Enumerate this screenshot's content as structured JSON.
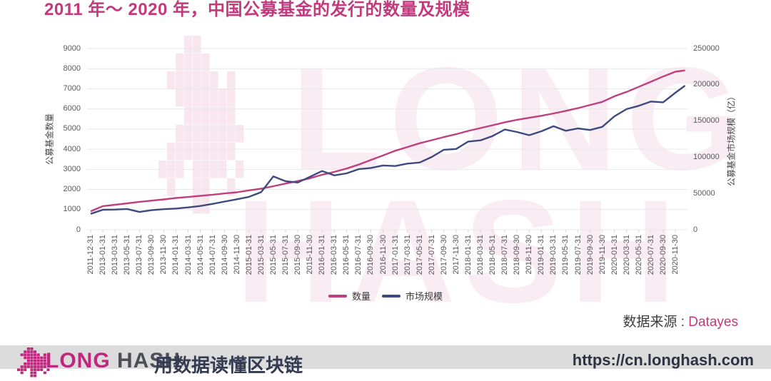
{
  "title": "2011 年～ 2020 年，中国公募基金的发行的数量及规模",
  "source": {
    "label": "数据来源 :",
    "value": "Datayes"
  },
  "watermark": {
    "line1": "LONG",
    "line2": "HASH"
  },
  "footer": {
    "brand_long": "LONG",
    "brand_hash": "HASH",
    "tagline": "用数据读懂区块链",
    "url": "https://cn.longhash.com"
  },
  "colors": {
    "title_pink": "#c23a7c",
    "series_count": "#c0407e",
    "series_scale": "#3d4a7d",
    "gridline": "#e7e7e7",
    "axis_text": "#595959",
    "footer_bg": "#dcdcdc",
    "brand_magenta": "#c0267e"
  },
  "chart_data": {
    "type": "line",
    "title": "2011 年～ 2020 年，中国公募基金的发行的数量及规模",
    "grid": true,
    "legend_position": "bottom",
    "y_left": {
      "label": "公募基金数量",
      "min": 0,
      "max": 9000,
      "tick_step": 1000,
      "ticks": [
        0,
        1000,
        2000,
        3000,
        4000,
        5000,
        6000,
        7000,
        8000,
        9000
      ]
    },
    "y_right": {
      "label": "公募基金市场规模（亿）",
      "min": 0,
      "max": 250000,
      "tick_step": 50000,
      "ticks": [
        0,
        50000,
        100000,
        150000,
        200000,
        250000
      ]
    },
    "x_labels": [
      "2011-12-31",
      "2013-01-31",
      "2013-03-31",
      "2013-05-31",
      "2013-07-31",
      "2013-09-30",
      "2013-11-30",
      "2014-01-31",
      "2014-03-31",
      "2014-05-31",
      "2014-07-31",
      "2014-09-30",
      "2014-11-30",
      "2015-01-31",
      "2015-03-31",
      "2015-05-31",
      "2015-07-31",
      "2015-09-30",
      "2015-11-30",
      "2016-01-31",
      "2016-03-31",
      "2016-05-31",
      "2016-07-31",
      "2016-09-30",
      "2016-11-30",
      "2017-01-31",
      "2017-03-31",
      "2017-05-31",
      "2017-07-31",
      "2017-09-30",
      "2017-11-30",
      "2018-01-31",
      "2018-03-31",
      "2018-05-31",
      "2018-07-31",
      "2018-09-30",
      "2018-11-30",
      "2019-01-31",
      "2019-03-31",
      "2019-05-31",
      "2019-07-31",
      "2019-09-30",
      "2019-11-30",
      "2020-01-31",
      "2020-03-31",
      "2020-05-31",
      "2020-07-31",
      "2020-09-30",
      "2020-11-30"
    ],
    "x_extra_point": "2020-12-31",
    "series": [
      {
        "name": "数量",
        "axis": "left",
        "color": "#c0407e",
        "values": [
          914,
          1173,
          1241,
          1311,
          1384,
          1445,
          1505,
          1576,
          1628,
          1682,
          1740,
          1804,
          1862,
          1955,
          2042,
          2161,
          2294,
          2420,
          2555,
          2732,
          2873,
          3038,
          3236,
          3463,
          3689,
          3922,
          4107,
          4293,
          4448,
          4604,
          4746,
          4906,
          5048,
          5190,
          5336,
          5459,
          5560,
          5658,
          5777,
          5903,
          6038,
          6199,
          6350,
          6628,
          6847,
          7096,
          7351,
          7610,
          7850,
          7913
        ]
      },
      {
        "name": "市场规模",
        "axis": "right",
        "color": "#3d4a7d",
        "values": [
          21900,
          27600,
          27900,
          28600,
          24500,
          27000,
          28300,
          29200,
          30800,
          32800,
          35600,
          38900,
          42000,
          45400,
          52000,
          73600,
          66900,
          65200,
          73000,
          81000,
          75000,
          77800,
          83600,
          85200,
          88700,
          87900,
          91200,
          92700,
          100400,
          110300,
          111400,
          121700,
          123300,
          129300,
          138300,
          134800,
          130400,
          135800,
          142800,
          136500,
          139800,
          137600,
          141900,
          156500,
          166400,
          171000,
          176900,
          175800,
          189000,
          198800
        ]
      }
    ]
  }
}
